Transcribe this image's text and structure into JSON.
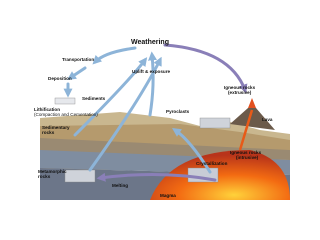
{
  "title": "Weathering",
  "labels": {
    "transportation": "Transportation",
    "deposition": "Deposition",
    "sediments": "Sediments",
    "lithification": "Lithification",
    "lithification_note": "(Compaction and Cementation)",
    "sedimentary": "Sedimentary",
    "rocks_sed": "rocks",
    "uplift": "Uplift & exposure",
    "igneous_ext": "Igneous rocks",
    "igneous_ext_note": "(extrusive)",
    "lava": "Lava",
    "pyroclasts": "Pyroclasts",
    "metamorphic": "Metamorphic",
    "rocks_meta": "rocks",
    "igneous_int": "Igneous rocks",
    "igneous_int_note": "(intrusive)",
    "crystallization": "Crystallization",
    "magma": "Magma",
    "melting": "Melting"
  }
}
